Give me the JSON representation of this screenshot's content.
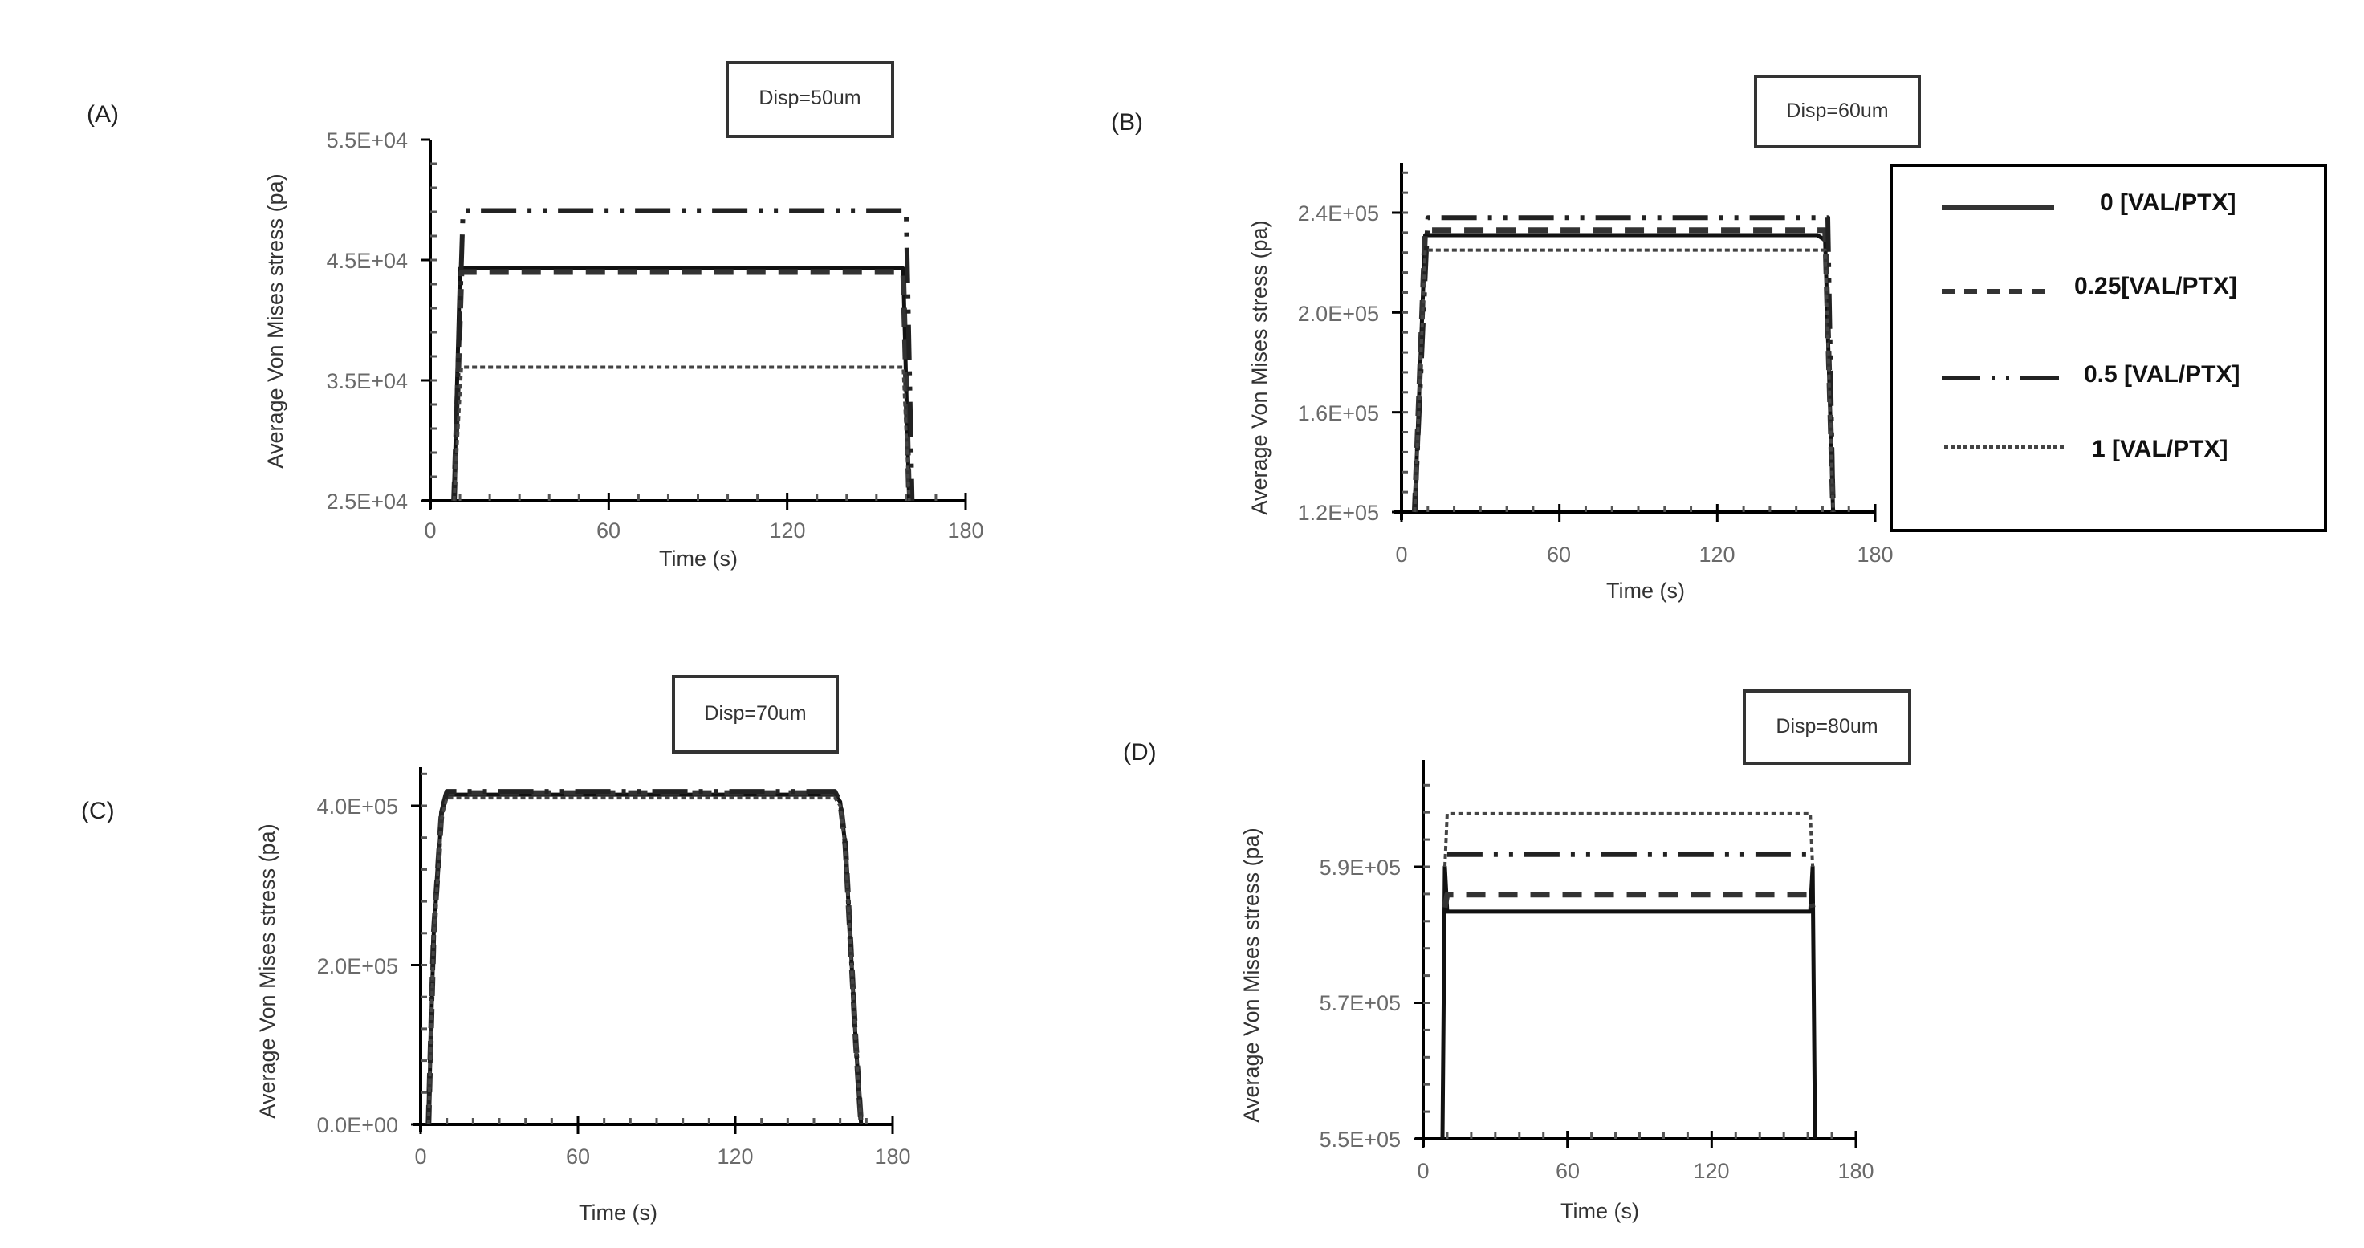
{
  "figure": {
    "disp_prefix": "Disp="
  },
  "legend": {
    "entries": [
      {
        "label": "0 [VAL/PTX]",
        "style": "solid"
      },
      {
        "label": "0.25[VAL/PTX]",
        "style": "dashed"
      },
      {
        "label": "0.5 [VAL/PTX]",
        "style": "dashdotdot"
      },
      {
        "label": "1 [VAL/PTX]",
        "style": "dotted"
      }
    ]
  },
  "colors": {
    "line": "#111111",
    "axis": "#000000",
    "tick_text": "#6a6a6a",
    "background": "#ffffff"
  },
  "chart_data": [
    {
      "panel": "(A)",
      "type": "line",
      "title": "Disp=50um",
      "xlabel": "Time (s)",
      "ylabel": "Average Von Mises stress (pa)",
      "xlim": [
        0,
        180
      ],
      "xticks": [
        "0",
        "60",
        "120",
        "180"
      ],
      "ylim": [
        25000,
        55000
      ],
      "yticks": [
        "2.5E+04",
        "3.5E+04",
        "4.5E+04",
        "5.5E+04"
      ],
      "ytick_values": [
        25000,
        35000,
        45000,
        55000
      ],
      "grid": false,
      "series": [
        {
          "name": "0 [VAL/PTX]",
          "style": "solid",
          "x": [
            8,
            10,
            159,
            161
          ],
          "y": [
            25000,
            44300,
            44300,
            25000
          ]
        },
        {
          "name": "0.25[VAL/PTX]",
          "style": "dashed",
          "x": [
            8,
            10.5,
            159,
            161
          ],
          "y": [
            25000,
            44000,
            44000,
            25000
          ]
        },
        {
          "name": "0.5 [VAL/PTX]",
          "style": "dashdotdot",
          "x": [
            8,
            11,
            160,
            162
          ],
          "y": [
            25000,
            49100,
            49100,
            25000
          ]
        },
        {
          "name": "1 [VAL/PTX]",
          "style": "dotted",
          "x": [
            8,
            10.5,
            159,
            161
          ],
          "y": [
            25000,
            36100,
            36100,
            25000
          ]
        }
      ]
    },
    {
      "panel": "(B)",
      "type": "line",
      "title": "Disp=60um",
      "xlabel": "Time (s)",
      "ylabel": "Average Von Mises stress (pa)",
      "xlim": [
        0,
        180
      ],
      "xticks": [
        "0",
        "60",
        "120",
        "180"
      ],
      "ylim": [
        120000,
        252000
      ],
      "yticks": [
        "1.2E+05",
        "1.6E+05",
        "2.0E+05",
        "2.4E+05"
      ],
      "ytick_values": [
        120000,
        160000,
        200000,
        240000
      ],
      "grid": false,
      "series": [
        {
          "name": "0 [VAL/PTX]",
          "style": "solid",
          "x": [
            5,
            9,
            158,
            161,
            164
          ],
          "y": [
            120000,
            231000,
            231000,
            229000,
            120000
          ]
        },
        {
          "name": "0.25[VAL/PTX]",
          "style": "dashed",
          "x": [
            5,
            9,
            161,
            164
          ],
          "y": [
            120000,
            233000,
            233000,
            120000
          ]
        },
        {
          "name": "0.5 [VAL/PTX]",
          "style": "dashdotdot",
          "x": [
            5,
            10,
            162,
            164
          ],
          "y": [
            120000,
            238000,
            238000,
            120000
          ]
        },
        {
          "name": "1 [VAL/PTX]",
          "style": "dotted",
          "x": [
            5,
            9,
            161,
            164
          ],
          "y": [
            120000,
            225000,
            225000,
            120000
          ]
        }
      ]
    },
    {
      "panel": "(C)",
      "type": "line",
      "title": "Disp=70um",
      "xlabel": "Time (s)",
      "ylabel": "Average Von Mises stress (pa)",
      "xlim": [
        0,
        180
      ],
      "xticks": [
        "0",
        "60",
        "120",
        "180"
      ],
      "ylim": [
        0,
        450000
      ],
      "yticks": [
        "0.0E+00",
        "2.0E+05",
        "4.0E+05"
      ],
      "ytick_values": [
        0,
        200000,
        400000
      ],
      "grid": false,
      "series": [
        {
          "name": "0 [VAL/PTX]",
          "style": "solid",
          "x": [
            3,
            5,
            8,
            10,
            158,
            160,
            162,
            166,
            168
          ],
          "y": [
            0,
            240000,
            390000,
            414000,
            414000,
            405000,
            350000,
            100000,
            0
          ]
        },
        {
          "name": "0.25[VAL/PTX]",
          "style": "dashed",
          "x": [
            3,
            5,
            8,
            10,
            158,
            160,
            162,
            166,
            168
          ],
          "y": [
            0,
            240000,
            392000,
            416000,
            416000,
            405000,
            350000,
            100000,
            0
          ]
        },
        {
          "name": "0.5 [VAL/PTX]",
          "style": "dashdotdot",
          "x": [
            3,
            5,
            8,
            10,
            158,
            160,
            162,
            166,
            168
          ],
          "y": [
            0,
            240000,
            392000,
            418000,
            418000,
            405000,
            350000,
            100000,
            0
          ]
        },
        {
          "name": "1 [VAL/PTX]",
          "style": "dotted",
          "x": [
            3,
            5,
            8,
            10,
            158,
            160,
            162,
            166,
            168
          ],
          "y": [
            0,
            235000,
            385000,
            410000,
            410000,
            400000,
            345000,
            100000,
            0
          ]
        }
      ]
    },
    {
      "panel": "(D)",
      "type": "line",
      "title": "Disp=80um",
      "xlabel": "Time (s)",
      "ylabel": "Average Von Mises stress (pa)",
      "xlim": [
        0,
        180
      ],
      "xticks": [
        "0",
        "60",
        "120",
        "180"
      ],
      "ylim": [
        550000,
        605000
      ],
      "yticks": [
        "5.5E+05",
        "5.7E+05",
        "5.9E+05"
      ],
      "ytick_values": [
        550000,
        570000,
        590000
      ],
      "grid": false,
      "series": [
        {
          "name": "0 [VAL/PTX]",
          "style": "solid",
          "x": [
            8,
            9,
            10,
            161,
            162,
            163
          ],
          "y": [
            550000,
            590000,
            583400,
            583400,
            590000,
            550000
          ]
        },
        {
          "name": "0.25[VAL/PTX]",
          "style": "dashed",
          "x": [
            9,
            10,
            161,
            162
          ],
          "y": [
            584000,
            585900,
            585900,
            584000
          ]
        },
        {
          "name": "0.5 [VAL/PTX]",
          "style": "dashdotdot",
          "x": [
            10,
            161
          ],
          "y": [
            591800,
            591800
          ]
        },
        {
          "name": "1 [VAL/PTX]",
          "style": "dotted",
          "x": [
            9,
            10,
            161,
            162
          ],
          "y": [
            590000,
            597800,
            597800,
            590000
          ]
        }
      ]
    }
  ]
}
